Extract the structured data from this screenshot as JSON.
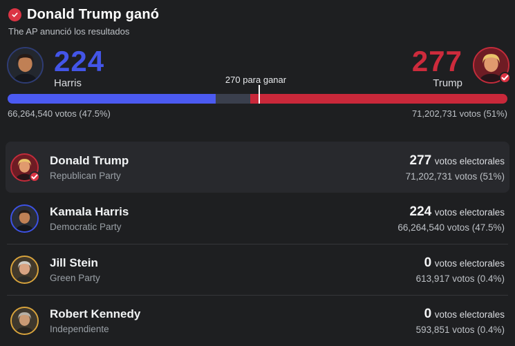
{
  "header": {
    "title": "Donald Trump ganó",
    "subtitle": "The AP anunció los resultados",
    "icon_color": "#db3444"
  },
  "scoreboard": {
    "threshold_label": "270 para ganar",
    "left": {
      "candidate": "Harris",
      "electoral_votes": "224",
      "popular_votes": "66,264,540 votos (47.5%)",
      "number_color": "#4355e8",
      "winner": false,
      "avatar": {
        "ring": "#2e3c74",
        "bg": "#23272e",
        "hair": "#261b17",
        "skin": "#c08055",
        "suit": "#15171d"
      }
    },
    "right": {
      "candidate": "Trump",
      "electoral_votes": "277",
      "popular_votes": "71,202,731 votos (51%)",
      "number_color": "#cd2b3c",
      "winner": true,
      "avatar": {
        "ring": "#c32c3b",
        "bg": "#6e1c24",
        "hair": "#e9c46a",
        "skin": "#e09a6e",
        "suit": "#271419"
      }
    },
    "bar": {
      "segments": [
        {
          "name": "harris",
          "pct": 41.6,
          "color": "#4b5af1"
        },
        {
          "name": "undecided",
          "pct": 6.9,
          "color": "#3a3f4d"
        },
        {
          "name": "trump",
          "pct": 51.5,
          "color": "#c9283a"
        }
      ],
      "marker_pct": 50.2,
      "marker_color": "#ffffff"
    }
  },
  "candidates": [
    {
      "name": "Donald Trump",
      "party": "Republican Party",
      "electoral_votes": "277",
      "electoral_label": "votos electorales",
      "popular_votes": "71,202,731 votos (51%)",
      "winner": true,
      "highlighted": true,
      "avatar": {
        "ring": "#c32c3b",
        "bg": "#6e1c24",
        "hair": "#e9c46a",
        "skin": "#e09a6e",
        "suit": "#271419"
      }
    },
    {
      "name": "Kamala Harris",
      "party": "Democratic Party",
      "electoral_votes": "224",
      "electoral_label": "votos electorales",
      "popular_votes": "66,264,540 votos (47.5%)",
      "winner": false,
      "highlighted": false,
      "avatar": {
        "ring": "#3d52e6",
        "bg": "#2a2e36",
        "hair": "#261b17",
        "skin": "#c08055",
        "suit": "#15171d"
      }
    },
    {
      "name": "Jill Stein",
      "party": "Green Party",
      "electoral_votes": "0",
      "electoral_label": "votos electorales",
      "popular_votes": "613,917 votos (0.4%)",
      "winner": false,
      "highlighted": false,
      "avatar": {
        "ring": "#d9a43c",
        "bg": "#42392b",
        "hair": "#cfcdc7",
        "skin": "#d8a382",
        "suit": "#2b2a27"
      }
    },
    {
      "name": "Robert Kennedy",
      "party": "Independiente",
      "electoral_votes": "0",
      "electoral_label": "votos electorales",
      "popular_votes": "593,851 votos (0.4%)",
      "winner": false,
      "highlighted": false,
      "avatar": {
        "ring": "#d9a43c",
        "bg": "#3e382d",
        "hair": "#b5b0a6",
        "skin": "#c99a74",
        "suit": "#27241f"
      }
    }
  ]
}
